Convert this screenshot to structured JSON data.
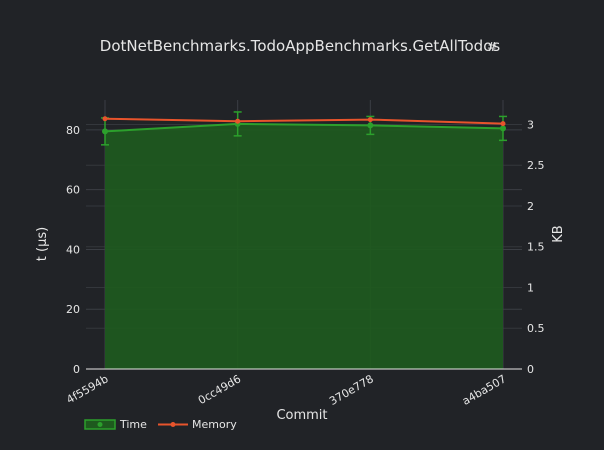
{
  "chart_data": {
    "type": "line",
    "title": "DotNetBenchmarks.TodoAppBenchmarks.GetAllTodos",
    "title_link": "#",
    "xlabel": "Commit",
    "ylabel": "t (µs)",
    "y2label": "KB",
    "categories": [
      "4f5594b",
      "0cc49d6",
      "370e778",
      "a4ba507"
    ],
    "ylim": [
      0,
      90
    ],
    "y2lim": [
      0,
      3.3
    ],
    "yticks": [
      "0",
      "20",
      "40",
      "60",
      "80"
    ],
    "y2ticks": [
      "0",
      "0.5",
      "1",
      "1.5",
      "2",
      "2.5",
      "3"
    ],
    "grid": true,
    "legend_position": "bottom-left",
    "series": [
      {
        "name": "Time",
        "axis": "y",
        "style": "area",
        "color": "#2ca02c",
        "fill_color": "#1e5a1e",
        "values": [
          79.5,
          82,
          81.5,
          80.5
        ],
        "error": [
          4.5,
          4,
          3,
          4
        ]
      },
      {
        "name": "Memory",
        "axis": "y2",
        "style": "line",
        "color": "#e8542c",
        "values": [
          3.07,
          3.04,
          3.06,
          3.01
        ]
      }
    ]
  }
}
